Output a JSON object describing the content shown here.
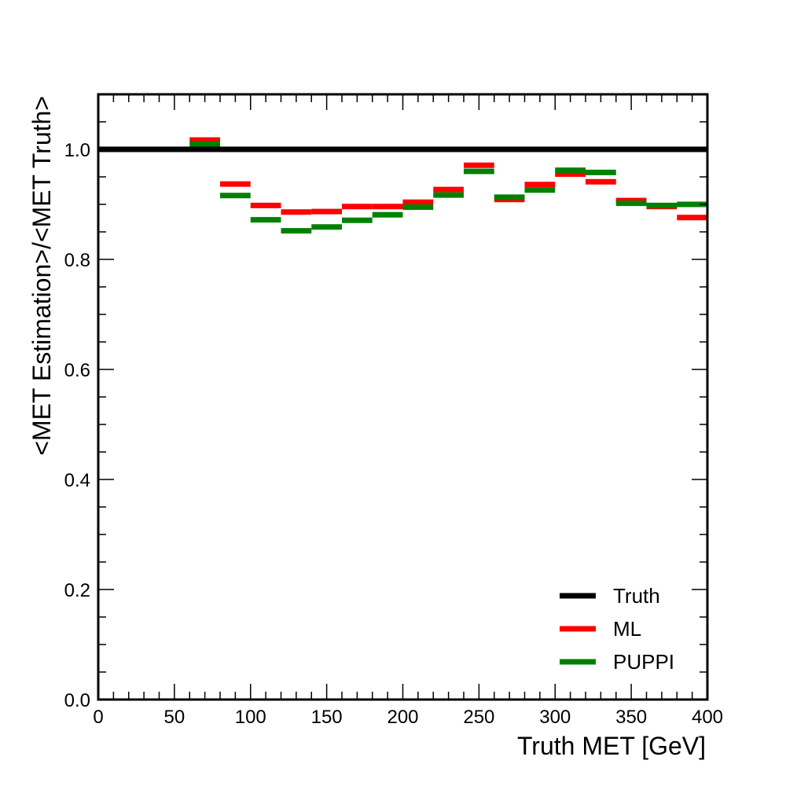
{
  "chart_data": {
    "type": "step",
    "xlabel": "Truth MET [GeV]",
    "ylabel": "<MET Estimation>/<MET Truth>",
    "xlim": [
      0,
      400
    ],
    "ylim": [
      0,
      1.1
    ],
    "grid": false,
    "legend_position": "bottom-right",
    "x_ticks": [
      "0",
      "50",
      "100",
      "150",
      "200",
      "250",
      "300",
      "350",
      "400"
    ],
    "y_ticks": [
      "0.0",
      "0.2",
      "0.4",
      "0.6",
      "0.8",
      "1.0"
    ],
    "bin_edges": [
      60,
      80,
      100,
      120,
      140,
      160,
      180,
      200,
      220,
      240,
      260,
      280,
      300,
      320,
      340,
      360,
      380,
      400
    ],
    "series": [
      {
        "name": "Truth",
        "color": "#000000",
        "line": {
          "x": [
            0,
            400
          ],
          "value": 1.0
        }
      },
      {
        "name": "ML",
        "color": "#ff0000",
        "values": [
          1.017,
          0.937,
          0.898,
          0.886,
          0.887,
          0.896,
          0.896,
          0.904,
          0.927,
          0.971,
          0.909,
          0.936,
          0.955,
          0.941,
          0.907,
          0.896,
          0.876
        ]
      },
      {
        "name": "PUPPI",
        "color": "#008000",
        "values": [
          1.01,
          0.916,
          0.872,
          0.852,
          0.859,
          0.871,
          0.881,
          0.895,
          0.917,
          0.96,
          0.913,
          0.926,
          0.962,
          0.958,
          0.902,
          0.898,
          0.9
        ]
      }
    ]
  }
}
